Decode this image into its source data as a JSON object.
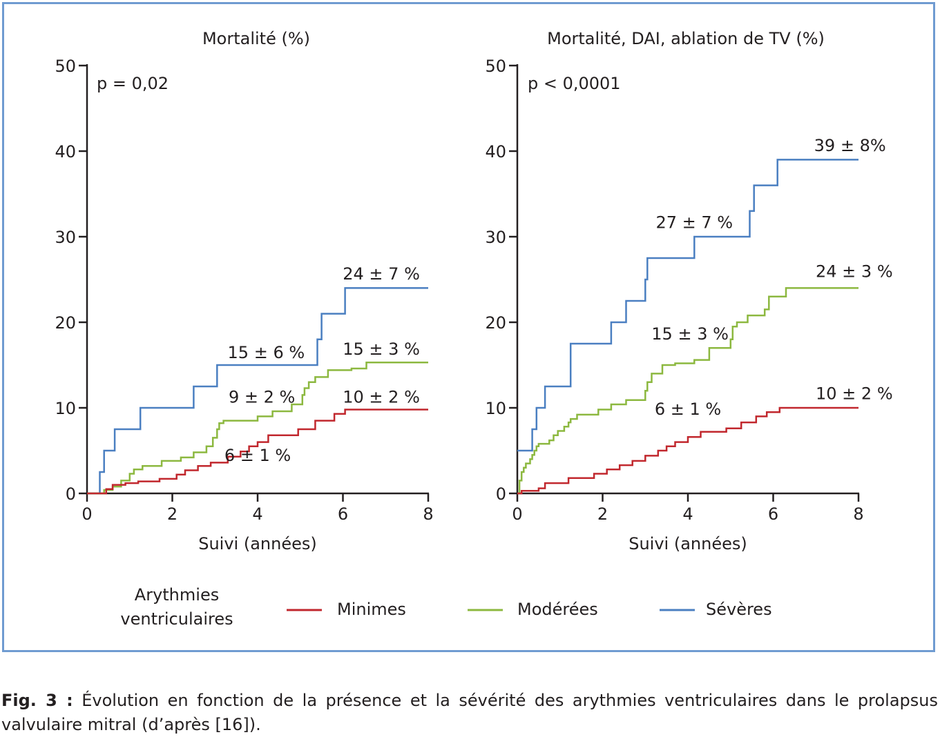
{
  "legend": {
    "title_lines": [
      "Arythmies",
      "ventriculaires"
    ],
    "items": [
      {
        "label": "Minimes",
        "color": "#c1272d"
      },
      {
        "label": "Modérées",
        "color": "#8cb83f"
      },
      {
        "label": "Sévères",
        "color": "#4a7fc1"
      }
    ]
  },
  "caption": {
    "label": "Fig. 3 :",
    "text": "Évolution en fonction de la présence et la sévérité des arythmies ventriculaires dans le prolapsus valvulaire mitral (d’après [16])."
  },
  "chart_data": [
    {
      "type": "line",
      "step": true,
      "title": "Mortalité (%)",
      "xlabel": "Suivi (années)",
      "ylabel": "",
      "xlim": [
        0,
        8
      ],
      "ylim": [
        0,
        50
      ],
      "xticks": [
        0,
        2,
        4,
        6,
        8
      ],
      "yticks": [
        0,
        10,
        20,
        30,
        40,
        50
      ],
      "p_value": "p = 0,02",
      "series": [
        {
          "name": "Sévères",
          "color": "#4a7fc1",
          "x": [
            0,
            0.3,
            0.4,
            0.65,
            1.25,
            2.5,
            3.05,
            5.4,
            5.5,
            6.05,
            8
          ],
          "y": [
            0,
            2.5,
            5,
            7.5,
            10,
            12.5,
            15,
            18,
            21,
            24,
            24
          ]
        },
        {
          "name": "Modérées",
          "color": "#8cb83f",
          "x": [
            0,
            0.4,
            0.6,
            0.8,
            1.0,
            1.1,
            1.3,
            1.75,
            2.2,
            2.5,
            2.8,
            2.95,
            3.05,
            3.1,
            3.2,
            4.0,
            4.35,
            4.8,
            5.05,
            5.1,
            5.2,
            5.35,
            5.65,
            6.2,
            6.55,
            8
          ],
          "y": [
            0,
            0.4,
            0.8,
            1.5,
            2.3,
            2.8,
            3.2,
            3.8,
            4.2,
            4.8,
            5.5,
            6.5,
            7.5,
            8.2,
            8.5,
            9.0,
            9.6,
            10.4,
            11.5,
            12.3,
            13.0,
            13.6,
            14.4,
            14.6,
            15.3,
            15.3
          ]
        },
        {
          "name": "Minimes",
          "color": "#c1272d",
          "x": [
            0,
            0.45,
            0.6,
            0.9,
            1.2,
            1.7,
            2.1,
            2.3,
            2.6,
            2.9,
            3.3,
            3.6,
            3.8,
            4.0,
            4.25,
            4.95,
            5.35,
            5.8,
            6.05,
            8
          ],
          "y": [
            0,
            0.5,
            1.0,
            1.2,
            1.4,
            1.7,
            2.2,
            2.7,
            3.2,
            3.6,
            4.3,
            4.9,
            5.5,
            6.0,
            6.8,
            7.5,
            8.5,
            9.3,
            9.8,
            9.8
          ]
        }
      ],
      "annotations": [
        {
          "text": "24 ± 7 %",
          "x": 6.9,
          "y": 25.0
        },
        {
          "text": "15 ± 6 %",
          "x": 4.2,
          "y": 15.8
        },
        {
          "text": "15 ± 3 %",
          "x": 6.9,
          "y": 16.2
        },
        {
          "text": "9 ± 2 %",
          "x": 4.1,
          "y": 10.6
        },
        {
          "text": "10 ± 2 %",
          "x": 6.9,
          "y": 10.6
        },
        {
          "text": "6 ± 1 %",
          "x": 4.0,
          "y": 3.8
        }
      ]
    },
    {
      "type": "line",
      "step": true,
      "title": "Mortalité, DAI, ablation de TV (%)",
      "xlabel": "Suivi (années)",
      "ylabel": "",
      "xlim": [
        0,
        8
      ],
      "ylim": [
        0,
        50
      ],
      "xticks": [
        0,
        2,
        4,
        6,
        8
      ],
      "yticks": [
        0,
        10,
        20,
        30,
        40,
        50
      ],
      "p_value": "p < 0,0001",
      "series": [
        {
          "name": "Sévères",
          "color": "#4a7fc1",
          "x": [
            0,
            0.35,
            0.45,
            0.65,
            1.25,
            2.2,
            2.55,
            3.0,
            3.05,
            4.15,
            5.45,
            5.55,
            6.1,
            8
          ],
          "y": [
            5,
            7.5,
            10,
            12.5,
            17.5,
            20,
            22.5,
            25,
            27.5,
            30,
            33,
            36,
            39,
            39
          ]
        },
        {
          "name": "Modérées",
          "color": "#8cb83f",
          "x": [
            0,
            0.05,
            0.1,
            0.15,
            0.2,
            0.3,
            0.35,
            0.4,
            0.45,
            0.5,
            0.75,
            0.85,
            0.95,
            1.1,
            1.2,
            1.25,
            1.4,
            1.9,
            2.2,
            2.55,
            3.0,
            3.05,
            3.15,
            3.4,
            3.7,
            4.15,
            4.5,
            5.0,
            5.05,
            5.15,
            5.4,
            5.8,
            5.9,
            6.3,
            8
          ],
          "y": [
            0,
            1.5,
            2.5,
            3.0,
            3.5,
            4.0,
            4.5,
            5.0,
            5.5,
            5.8,
            6.2,
            6.8,
            7.3,
            7.8,
            8.3,
            8.7,
            9.2,
            9.8,
            10.4,
            10.9,
            12.0,
            13.0,
            14.0,
            15.0,
            15.2,
            15.6,
            17.0,
            18.0,
            19.5,
            20.0,
            20.8,
            21.5,
            23.0,
            24.0,
            24.0
          ]
        },
        {
          "name": "Minimes",
          "color": "#c1272d",
          "x": [
            0,
            0.1,
            0.5,
            0.65,
            1.2,
            1.8,
            2.1,
            2.4,
            2.7,
            3.0,
            3.3,
            3.5,
            3.7,
            4.0,
            4.3,
            4.9,
            5.25,
            5.6,
            5.85,
            6.15,
            8
          ],
          "y": [
            0,
            0.3,
            0.6,
            1.2,
            1.8,
            2.3,
            2.8,
            3.3,
            3.8,
            4.4,
            5.0,
            5.5,
            6.0,
            6.6,
            7.2,
            7.6,
            8.3,
            9.0,
            9.5,
            10.0,
            10.0
          ]
        }
      ],
      "annotations": [
        {
          "text": "39 ± 8%",
          "x": 7.8,
          "y": 40.0
        },
        {
          "text": "27 ± 7 %",
          "x": 4.15,
          "y": 31.0
        },
        {
          "text": "24 ± 3 %",
          "x": 7.9,
          "y": 25.3
        },
        {
          "text": "15 ± 3 %",
          "x": 4.05,
          "y": 18.0
        },
        {
          "text": "6 ± 1 %",
          "x": 4.0,
          "y": 9.2
        },
        {
          "text": "10 ± 2 %",
          "x": 7.9,
          "y": 11.0
        }
      ]
    }
  ]
}
